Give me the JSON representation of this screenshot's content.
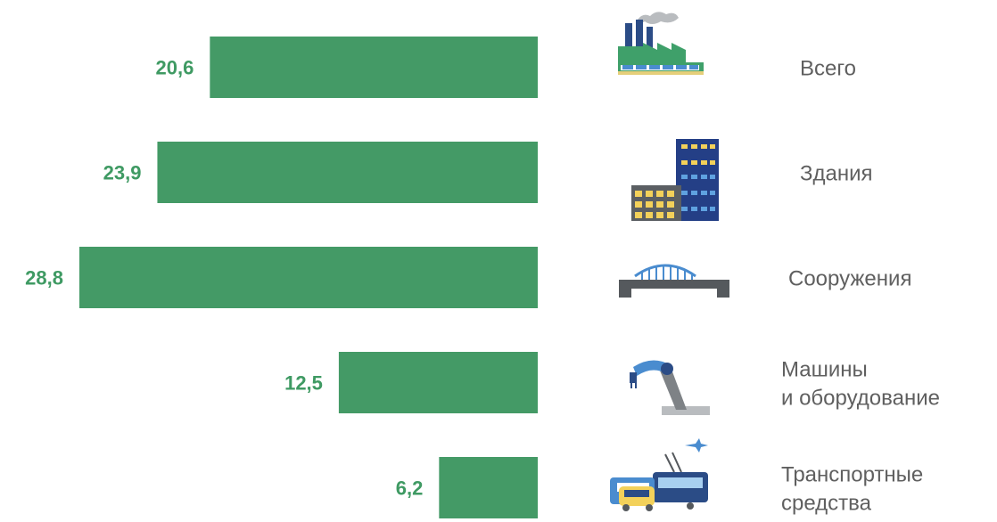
{
  "chart_data": {
    "type": "bar",
    "orientation": "horizontal",
    "direction": "bars extend leftward from baseline",
    "bar_color": "#449a66",
    "label_color": "#3f9a63",
    "categories": [
      [
        "Всего"
      ],
      [
        "Здания"
      ],
      [
        "Сооружения"
      ],
      [
        "Машины",
        "и оборудование"
      ],
      [
        "Транспортные",
        "средства"
      ]
    ],
    "values": [
      20.6,
      23.9,
      28.8,
      12.5,
      6.2
    ],
    "value_labels": [
      "20,6",
      "23,9",
      "28,8",
      "12,5",
      "6,2"
    ],
    "icons": [
      "factory-icon",
      "buildings-icon",
      "bridge-icon",
      "robot-arm-icon",
      "transport-icon"
    ],
    "xlim": [
      0,
      28.8
    ],
    "grid": false,
    "legend": "none"
  }
}
